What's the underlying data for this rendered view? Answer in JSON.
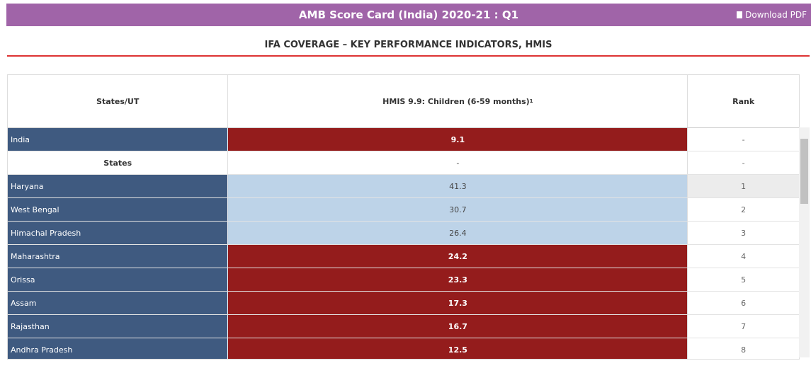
{
  "header": {
    "title": "AMB Score Card (India) 2020-21 : Q1",
    "download": "Download PDF"
  },
  "subtitle": "IFA COVERAGE – KEY PERFORMANCE INDICATORS, HMIS",
  "table": {
    "columns": [
      "States/UT",
      "HMIS 9.9: Children (6-59 months)",
      "Rank"
    ],
    "column_note": "1",
    "rows": [
      [
        "India",
        "9.1",
        "-"
      ],
      [
        "States",
        "-",
        "-"
      ],
      [
        "Haryana",
        "41.3",
        "1"
      ],
      [
        "West Bengal",
        "30.7",
        "2"
      ],
      [
        "Himachal Pradesh",
        "26.4",
        "3"
      ],
      [
        "Maharashtra",
        "24.2",
        "4"
      ],
      [
        "Orissa",
        "23.3",
        "5"
      ],
      [
        "Assam",
        "17.3",
        "6"
      ],
      [
        "Rajasthan",
        "16.7",
        "7"
      ],
      [
        "Andhra Pradesh",
        "12.5",
        "8"
      ]
    ]
  }
}
